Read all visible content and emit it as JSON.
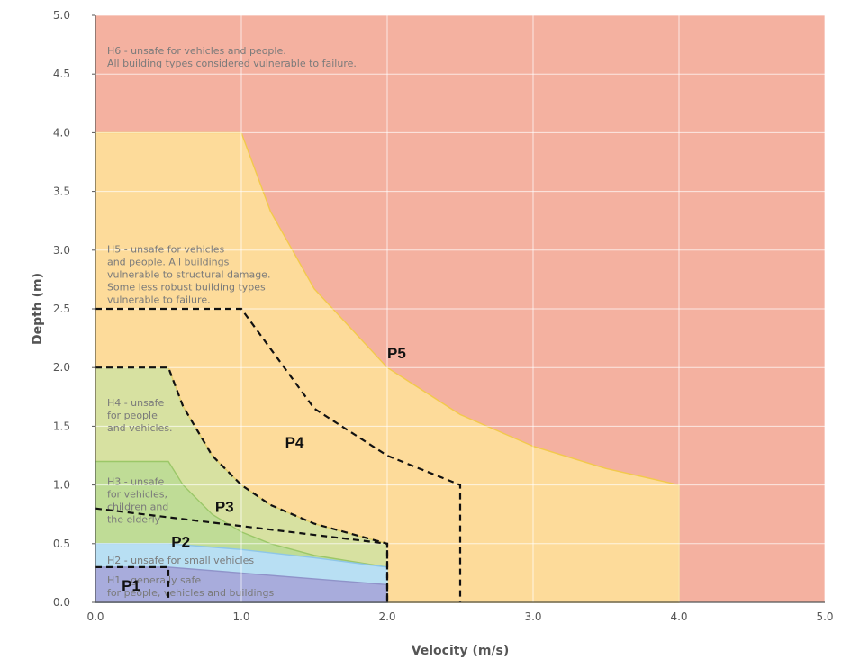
{
  "chart_data": {
    "type": "area",
    "xlabel": "Velocity (m/s)",
    "ylabel": "Depth (m)",
    "xlim": [
      0,
      5
    ],
    "ylim": [
      0,
      5
    ],
    "x_ticks": [
      "0.0",
      "1.0",
      "2.0",
      "3.0",
      "4.0",
      "5.0"
    ],
    "y_ticks": [
      "0.0",
      "0.5",
      "1.0",
      "1.5",
      "2.0",
      "2.5",
      "3.0",
      "3.5",
      "4.0",
      "4.5",
      "5.0"
    ],
    "grid": true,
    "zones": [
      {
        "id": "H6",
        "color": "#f4b1a0",
        "lines": [
          "H6 - unsafe for vehicles and people.",
          "All building types considered vulnerable to failure."
        ]
      },
      {
        "id": "H5",
        "color": "#fddb9a",
        "boundary_color": "#f2c94c",
        "boundary": [
          [
            0,
            4.0
          ],
          [
            1.0,
            4.0
          ],
          [
            1.2,
            3.33
          ],
          [
            1.5,
            2.67
          ],
          [
            2.0,
            2.0
          ],
          [
            2.5,
            1.6
          ],
          [
            3.0,
            1.33
          ],
          [
            3.5,
            1.14
          ],
          [
            4.0,
            1.0
          ],
          [
            4.0,
            0
          ]
        ],
        "lines": [
          "H5 - unsafe for vehicles",
          "and people. All buildings",
          "vulnerable to structural damage.",
          "Some less robust building types",
          "vulnerable to failure."
        ]
      },
      {
        "id": "H4",
        "color": "#d7e1a1",
        "boundary_color": "#e4cf6b",
        "boundary": [
          [
            0,
            2.0
          ],
          [
            0.5,
            2.0
          ],
          [
            0.6,
            1.67
          ],
          [
            0.8,
            1.25
          ],
          [
            1.0,
            1.0
          ],
          [
            1.2,
            0.83
          ],
          [
            1.5,
            0.67
          ],
          [
            2.0,
            0.5
          ],
          [
            2.0,
            0
          ]
        ],
        "lines": [
          "H4 - unsafe",
          "for people",
          "and vehicles."
        ]
      },
      {
        "id": "H3",
        "color": "#bfdc96",
        "boundary_color": "#9bc768",
        "boundary": [
          [
            0,
            1.2
          ],
          [
            0.5,
            1.2
          ],
          [
            0.6,
            1.0
          ],
          [
            0.8,
            0.75
          ],
          [
            1.0,
            0.6
          ],
          [
            1.2,
            0.5
          ],
          [
            1.5,
            0.4
          ],
          [
            2.0,
            0.3
          ],
          [
            2.0,
            0
          ]
        ],
        "lines": [
          "H3 - unsafe",
          "for vehicles,",
          "children and",
          "the elderly"
        ]
      },
      {
        "id": "H2",
        "color": "#b8dff3",
        "boundary_color": "#8ec6e8",
        "boundary": [
          [
            0,
            0.5
          ],
          [
            0.5,
            0.5
          ],
          [
            1.0,
            0.45
          ],
          [
            1.5,
            0.38
          ],
          [
            2.0,
            0.3
          ],
          [
            2.0,
            0
          ]
        ],
        "lines": [
          "H2 - unsafe for small vehicles"
        ]
      },
      {
        "id": "H1",
        "color": "#a8acdc",
        "boundary_color": "#8f93c9",
        "boundary": [
          [
            0,
            0.3
          ],
          [
            0.5,
            0.3
          ],
          [
            1.0,
            0.25
          ],
          [
            1.5,
            0.2
          ],
          [
            2.0,
            0.15
          ],
          [
            2.0,
            0
          ]
        ],
        "lines": [
          "H1 - generally safe",
          "for people, vehicles and buildings"
        ]
      }
    ],
    "p_lines": [
      {
        "name": "P5",
        "points": [
          [
            0,
            4.0
          ],
          [
            1.0,
            4.0
          ],
          [
            1.2,
            3.33
          ],
          [
            1.5,
            2.67
          ],
          [
            2.0,
            2.0
          ],
          [
            2.5,
            1.6
          ],
          [
            3.0,
            1.33
          ],
          [
            3.5,
            1.14
          ],
          [
            4.0,
            1.0
          ],
          [
            4.0,
            0
          ]
        ],
        "style": "solid-yellow",
        "label_at": [
          2.0,
          2.08
        ]
      },
      {
        "name": "P4",
        "points": [
          [
            0,
            2.5
          ],
          [
            1.0,
            2.5
          ],
          [
            1.5,
            1.65
          ],
          [
            2.0,
            1.25
          ],
          [
            2.5,
            1.0
          ],
          [
            2.5,
            0
          ]
        ],
        "style": "dashed",
        "label_at": [
          1.3,
          1.32
        ]
      },
      {
        "name": "P3",
        "points": [
          [
            0,
            2.0
          ],
          [
            0.5,
            2.0
          ],
          [
            0.6,
            1.67
          ],
          [
            0.8,
            1.25
          ],
          [
            1.0,
            1.0
          ],
          [
            1.2,
            0.83
          ],
          [
            1.5,
            0.67
          ],
          [
            2.0,
            0.5
          ],
          [
            2.0,
            0
          ]
        ],
        "style": "dashed",
        "label_at": [
          0.82,
          0.77
        ]
      },
      {
        "name": "P2",
        "points": [
          [
            0,
            0.8
          ],
          [
            2.0,
            0.5
          ],
          [
            2.0,
            0
          ]
        ],
        "style": "dashed",
        "label_at": [
          0.52,
          0.47
        ]
      },
      {
        "name": "P1",
        "points": [
          [
            0,
            0.3
          ],
          [
            0.5,
            0.3
          ],
          [
            0.5,
            0
          ]
        ],
        "style": "dashed",
        "label_at": [
          0.18,
          0.1
        ]
      }
    ]
  }
}
